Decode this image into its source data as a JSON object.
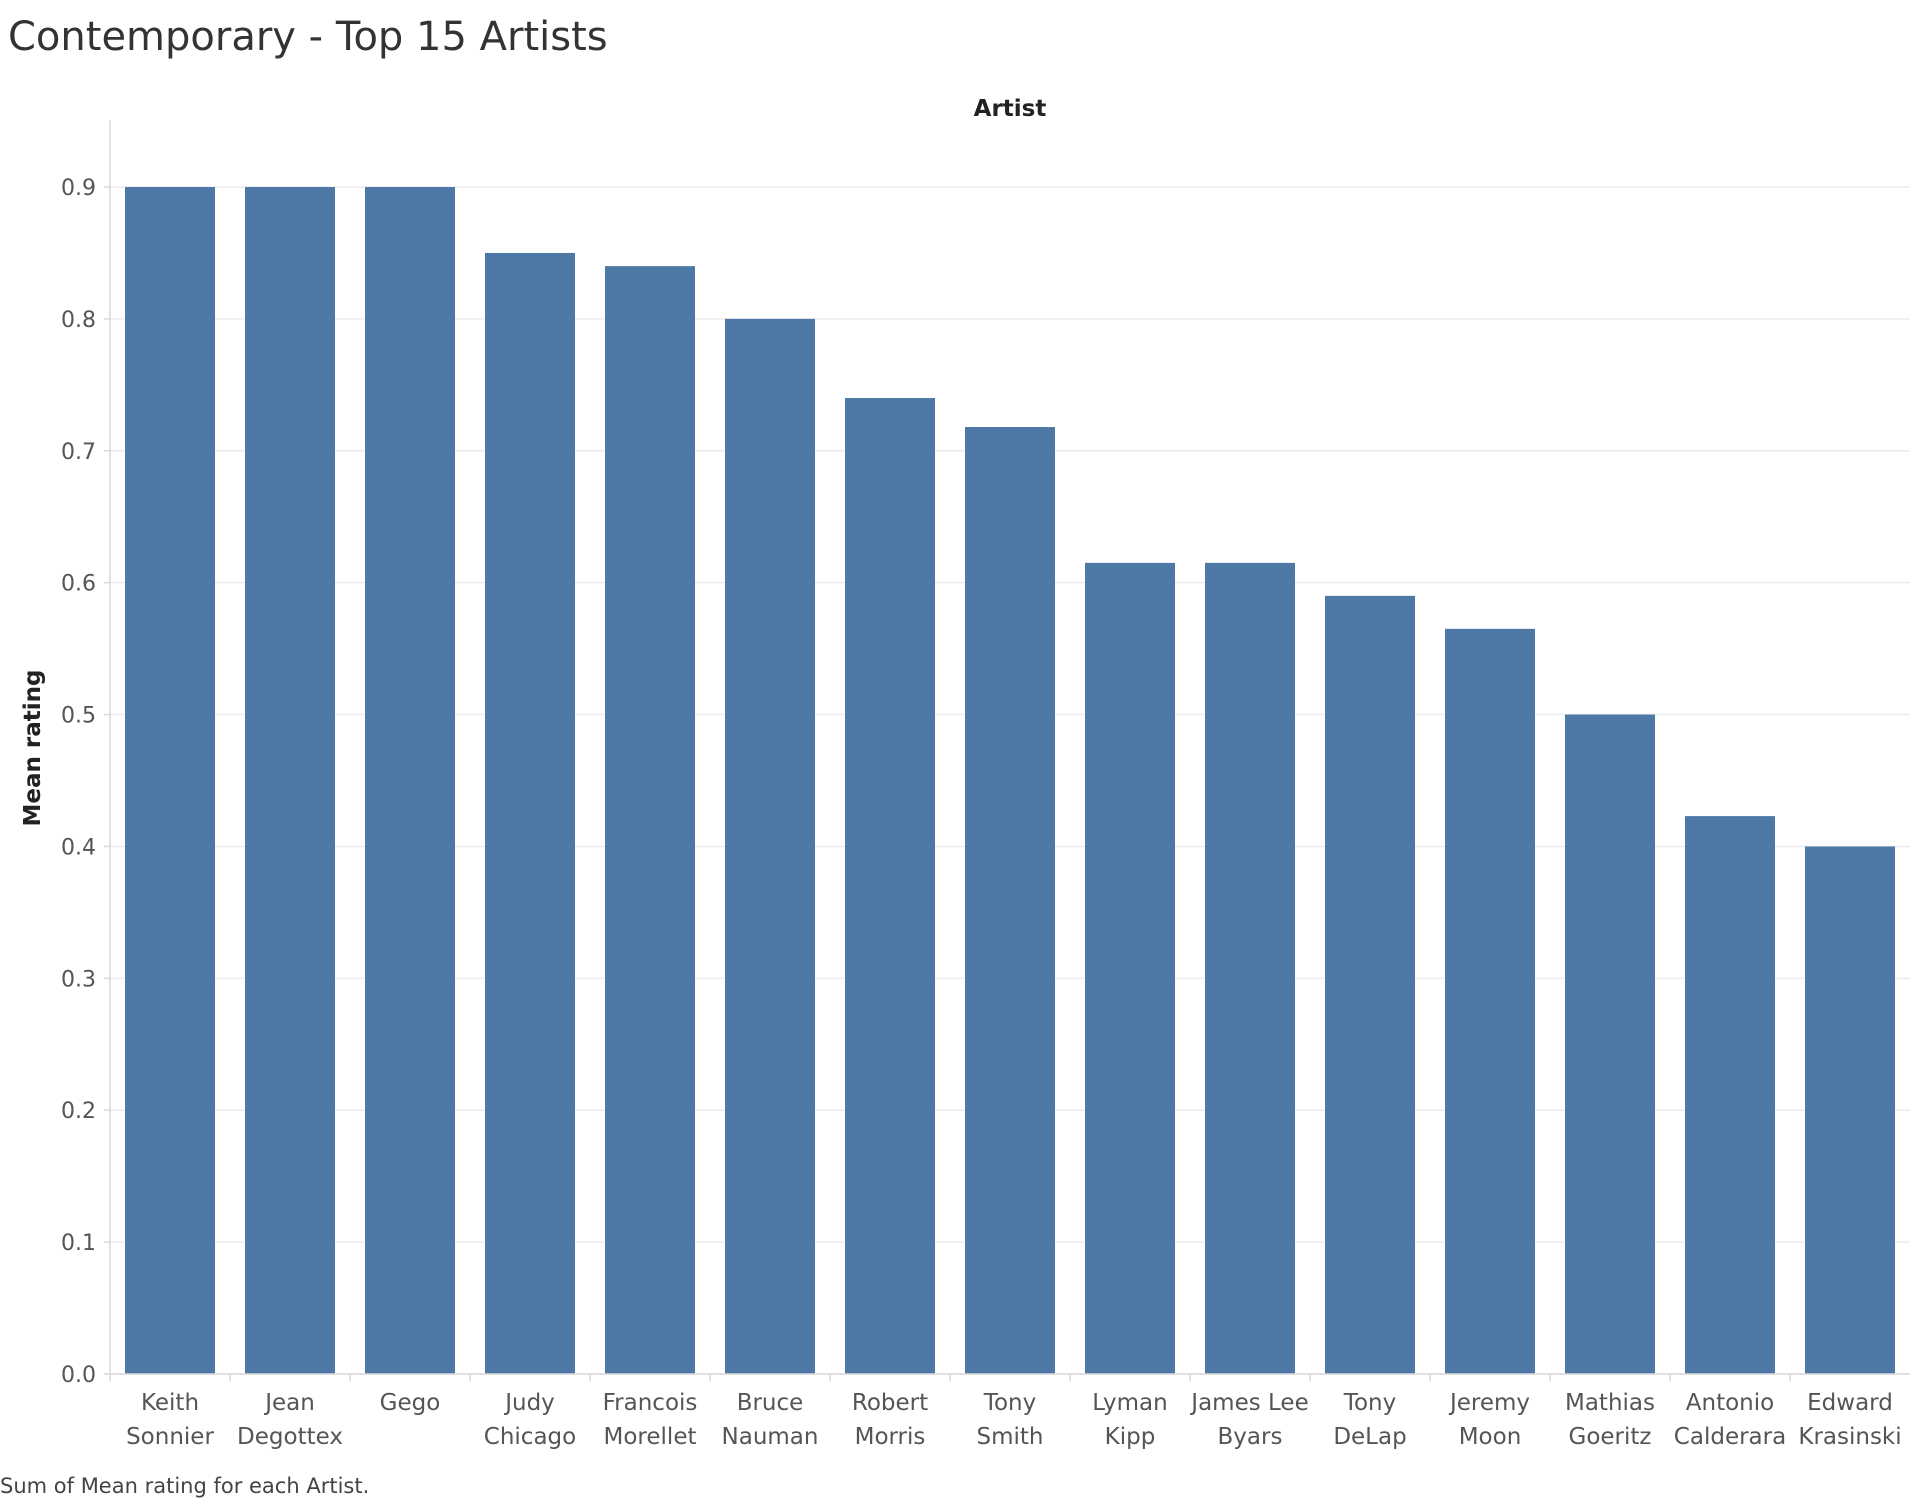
{
  "title": "Contemporary - Top 15 Artists",
  "caption": "Sum of Mean rating for each Artist.",
  "colors": {
    "bar": "#4e79a7",
    "grid": "#ebebeb",
    "axis": "#d9d9d9"
  },
  "chart_data": {
    "type": "bar",
    "title": "Contemporary - Top 15 Artists",
    "xlabel": "Artist",
    "ylabel": "Mean rating",
    "ylim": [
      0,
      0.9
    ],
    "yticks": [
      "0.0",
      "0.1",
      "0.2",
      "0.3",
      "0.4",
      "0.5",
      "0.6",
      "0.7",
      "0.8",
      "0.9"
    ],
    "grid": true,
    "categories": [
      [
        "Keith",
        "Sonnier"
      ],
      [
        "Jean",
        "Degottex"
      ],
      [
        "Gego"
      ],
      [
        "Judy",
        "Chicago"
      ],
      [
        "Francois",
        "Morellet"
      ],
      [
        "Bruce",
        "Nauman"
      ],
      [
        "Robert",
        "Morris"
      ],
      [
        "Tony",
        "Smith"
      ],
      [
        "Lyman",
        "Kipp"
      ],
      [
        "James Lee",
        "Byars"
      ],
      [
        "Tony",
        "DeLap"
      ],
      [
        "Jeremy",
        "Moon"
      ],
      [
        "Mathias",
        "Goeritz"
      ],
      [
        "Antonio",
        "Calderara"
      ],
      [
        "Edward",
        "Krasinski"
      ]
    ],
    "values": [
      0.9,
      0.9,
      0.9,
      0.85,
      0.84,
      0.8,
      0.74,
      0.718,
      0.615,
      0.615,
      0.59,
      0.565,
      0.5,
      0.423,
      0.4
    ]
  }
}
